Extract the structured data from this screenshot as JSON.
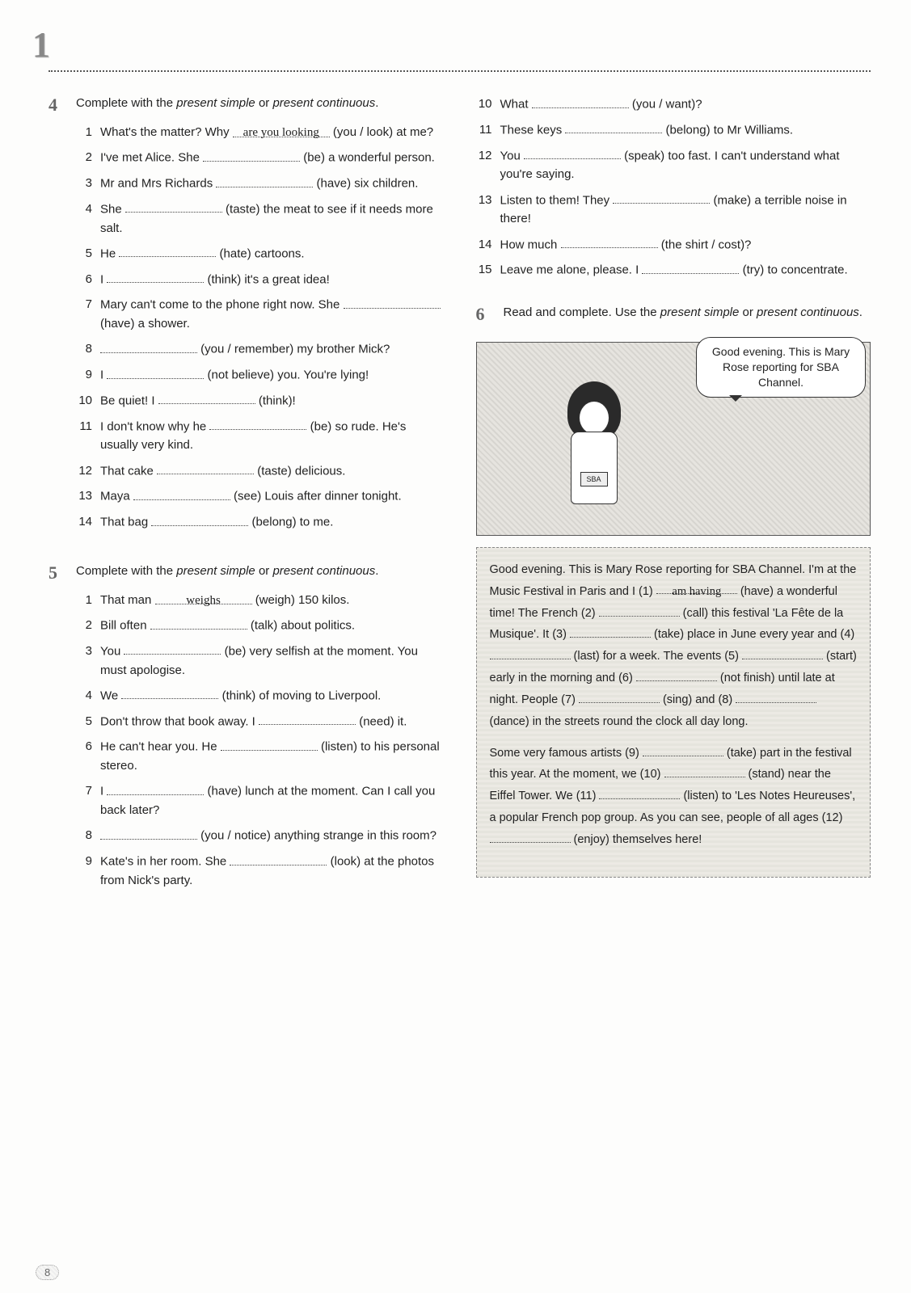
{
  "page_marker": "1",
  "page_number": "8",
  "ex4": {
    "number": "4",
    "instruction_a": "Complete with the ",
    "ps": "present simple",
    "or": " or ",
    "pc": "present continuous",
    "dot": ".",
    "items": [
      {
        "n": "1",
        "pre": "What's the matter? Why ",
        "ans": "are you looking",
        "post": " (you / look) at me?"
      },
      {
        "n": "2",
        "pre": "I've met Alice. She ",
        "post": " (be) a wonderful person."
      },
      {
        "n": "3",
        "pre": "Mr and Mrs Richards ",
        "post": " (have) six children."
      },
      {
        "n": "4",
        "pre": "She ",
        "post": " (taste) the meat to see if it needs more salt."
      },
      {
        "n": "5",
        "pre": "He ",
        "post": " (hate) cartoons."
      },
      {
        "n": "6",
        "pre": "I ",
        "post": " (think) it's a great idea!"
      },
      {
        "n": "7",
        "pre": "Mary can't come to the phone right now. She ",
        "post": " (have) a shower."
      },
      {
        "n": "8",
        "pre": "",
        "post": " (you / remember) my brother Mick?"
      },
      {
        "n": "9",
        "pre": "I ",
        "post": " (not believe) you. You're lying!"
      },
      {
        "n": "10",
        "pre": "Be quiet! I ",
        "post": " (think)!"
      },
      {
        "n": "11",
        "pre": "I don't know why he ",
        "post": " (be) so rude. He's usually very kind."
      },
      {
        "n": "12",
        "pre": "That cake ",
        "post": " (taste) delicious."
      },
      {
        "n": "13",
        "pre": "Maya ",
        "post": " (see) Louis after dinner tonight."
      },
      {
        "n": "14",
        "pre": "That bag ",
        "post": " (belong) to me."
      }
    ]
  },
  "ex5": {
    "number": "5",
    "instruction_a": "Complete with the ",
    "ps": "present simple",
    "or": " or ",
    "pc": "present continuous",
    "dot": ".",
    "items": [
      {
        "n": "1",
        "pre": "That man ",
        "ans": "weighs",
        "post": " (weigh) 150 kilos."
      },
      {
        "n": "2",
        "pre": "Bill often ",
        "post": " (talk) about politics."
      },
      {
        "n": "3",
        "pre": "You ",
        "post": " (be) very selfish at the moment. You must apologise."
      },
      {
        "n": "4",
        "pre": "We ",
        "post": " (think) of moving to Liverpool."
      },
      {
        "n": "5",
        "pre": "Don't throw that book away. I ",
        "post": " (need) it."
      },
      {
        "n": "6",
        "pre": "He can't hear you. He ",
        "post": " (listen) to his personal stereo."
      },
      {
        "n": "7",
        "pre": "I ",
        "post": " (have) lunch at the moment. Can I call you back later?"
      },
      {
        "n": "8",
        "pre": "",
        "post": " (you / notice) anything strange in this room?"
      },
      {
        "n": "9",
        "pre": "Kate's in her room. She ",
        "post": " (look) at the photos from Nick's party."
      }
    ]
  },
  "ex5b": {
    "items": [
      {
        "n": "10",
        "pre": "What ",
        "post": " (you / want)?"
      },
      {
        "n": "11",
        "pre": "These keys ",
        "post": " (belong) to Mr Williams."
      },
      {
        "n": "12",
        "pre": "You ",
        "post": " (speak) too fast. I can't understand what you're saying."
      },
      {
        "n": "13",
        "pre": "Listen to them! They ",
        "post": " (make) a terrible noise in there!"
      },
      {
        "n": "14",
        "pre": "How much ",
        "post": " (the shirt / cost)?"
      },
      {
        "n": "15",
        "pre": "Leave me alone, please. I ",
        "post": " (try) to concentrate."
      }
    ]
  },
  "ex6": {
    "number": "6",
    "instruction_a": "Read and complete. Use the ",
    "ps": "present simple",
    "or": " or ",
    "pc": "present continuous",
    "dot": ".",
    "speech": "Good evening. This is Mary Rose reporting for SBA Channel.",
    "badge": "SBA",
    "passage": {
      "p1_a": "Good evening. This is Mary Rose reporting for SBA Channel. I'm at the Music Festival in Paris and I (1) ",
      "ans1": "am having",
      "p1_b": " (have) a wonderful time! The French (2) ",
      "p1_c": " (call) this festival 'La Fête de la Musique'. It (3) ",
      "p1_d": " (take) place in June every year and (4) ",
      "p1_e": " (last) for a week. The events (5) ",
      "p1_f": " (start) early in the morning and (6) ",
      "p1_g": " (not finish) until late at night. People (7) ",
      "p1_h": " (sing) and (8) ",
      "p1_i": " (dance) in the streets round the clock all day long.",
      "p2_a": "Some very famous artists (9) ",
      "p2_b": " (take) part in the festival this year. At the moment, we (10) ",
      "p2_c": " (stand) near the Eiffel Tower. We (11) ",
      "p2_d": " (listen) to 'Les Notes Heureuses', a popular French pop group. As you can see, people of all ages (12) ",
      "p2_e": " (enjoy) themselves here!"
    }
  }
}
